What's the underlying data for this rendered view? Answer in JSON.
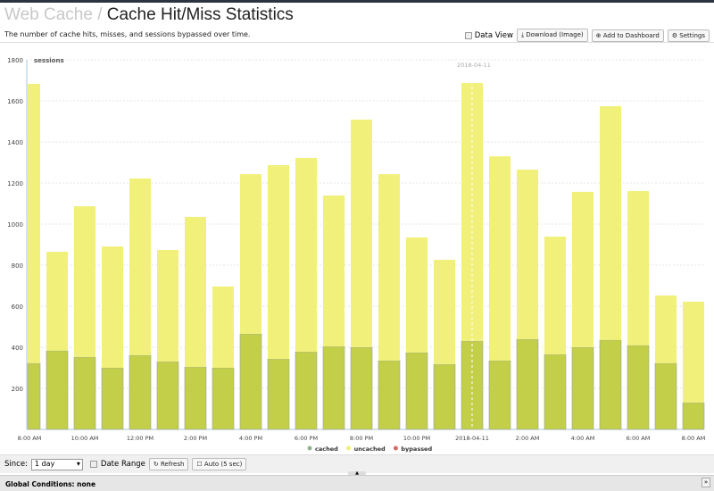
{
  "header": {
    "breadcrumb": "Web Cache /",
    "title": "Cache Hit/Miss Statistics",
    "description": "The number of cache hits, misses, and sessions bypassed over time."
  },
  "toolbar": {
    "data_view": "Data View",
    "download": "⤓ Download (Image)",
    "add_dashboard": "⊕ Add to Dashboard",
    "settings": "⚙ Settings"
  },
  "footer": {
    "since_label": "Since:",
    "since_value": "1 day",
    "date_range": "Date Range",
    "refresh": "↻ Refresh",
    "auto": "☐ Auto (5 sec)",
    "global_conditions": "Global Conditions: none"
  },
  "chart_data": {
    "type": "bar",
    "stacked": true,
    "ylabel": "sessions",
    "ylim": [
      0,
      1800
    ],
    "yticks": [
      200,
      400,
      600,
      800,
      1000,
      1200,
      1400,
      1600,
      1800
    ],
    "xtick_labels": [
      "8:00 AM",
      "10:00 AM",
      "12:00 PM",
      "2:00 PM",
      "4:00 PM",
      "6:00 PM",
      "8:00 PM",
      "10:00 PM",
      "2018-04-11",
      "2:00 AM",
      "4:00 AM",
      "6:00 AM",
      "8:00 AM"
    ],
    "marker_label": "2018-04-11",
    "marker_index": 16,
    "series": [
      {
        "name": "cached",
        "color": "#c3cf48",
        "values": [
          322,
          383,
          352,
          300,
          361,
          330,
          304,
          300,
          465,
          343,
          378,
          404,
          400,
          335,
          374,
          317,
          430,
          335,
          439,
          365,
          400,
          435,
          409,
          322,
          130
        ]
      },
      {
        "name": "uncached",
        "color": "#f1f07a",
        "values": [
          1361,
          482,
          735,
          591,
          861,
          544,
          731,
          396,
          778,
          944,
          944,
          735,
          1109,
          908,
          561,
          509,
          1257,
          995,
          826,
          574,
          757,
          1139,
          752,
          330,
          492
        ]
      },
      {
        "name": "bypassed",
        "color": "#d46a6a",
        "values": [
          0,
          0,
          0,
          0,
          0,
          0,
          0,
          0,
          0,
          0,
          0,
          0,
          0,
          0,
          0,
          0,
          0,
          0,
          0,
          0,
          0,
          0,
          0,
          0,
          0
        ]
      }
    ],
    "legend": "bottom-center",
    "grid": true
  }
}
